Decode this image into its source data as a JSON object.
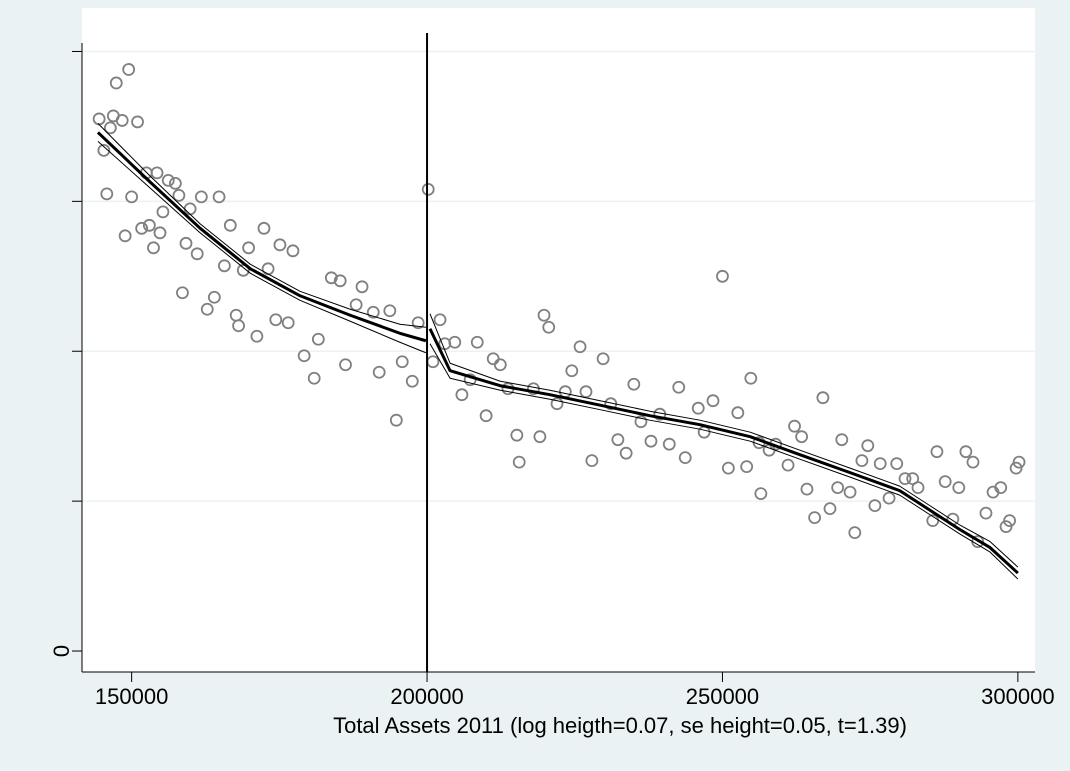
{
  "chart_data": {
    "type": "scatter",
    "x_label": "Total Assets 2011 (log heigth=0.07, se height=0.05, t=1.39)",
    "xlim": [
      141600,
      302900
    ],
    "xticks": [
      150000,
      200000,
      250000,
      300000
    ],
    "ylim": [
      -0.14,
      4.29
    ],
    "yticks": [
      0
    ],
    "yticks_unlabeled": [
      1,
      2,
      3,
      4
    ],
    "grid": true,
    "cutoff": 200000,
    "series": [
      {
        "type": "scatter",
        "color": "#808080",
        "x": [
          144500,
          145300,
          145800,
          146400,
          146900,
          147400,
          148400,
          148900,
          149500,
          150000,
          151000,
          151700,
          152500,
          153000,
          153700,
          154300,
          154800,
          155300,
          156200,
          157400,
          158000,
          158600,
          159200,
          159900,
          161100,
          161800,
          162800,
          164000,
          164800,
          165700,
          166700,
          167700,
          168100,
          168900,
          169800,
          171200,
          172400,
          173100,
          174400,
          175100,
          176500,
          177300,
          179200,
          180900,
          181600,
          183800,
          185300,
          186200,
          188000,
          189000,
          190900,
          191900,
          193700,
          194800,
          195800,
          197500,
          198500,
          200200,
          201000,
          202200,
          203000,
          204700,
          205900,
          207300,
          208500,
          210000,
          211200,
          212400,
          213700,
          215200,
          215600,
          218000,
          219100,
          219800,
          220600,
          222000,
          223400,
          224500,
          225900,
          226900,
          227900,
          229800,
          231100,
          232300,
          233700,
          235000,
          236200,
          237900,
          239400,
          241000,
          242600,
          243700,
          245900,
          246900,
          248400,
          250000,
          251000,
          252600,
          254100,
          254800,
          256200,
          256500,
          257900,
          259000,
          261100,
          262200,
          263400,
          264300,
          265600,
          267000,
          268200,
          269500,
          270200,
          271600,
          272400,
          273600,
          274600,
          275800,
          276700,
          278200,
          279500,
          280900,
          282200,
          283100,
          285600,
          286300,
          287700,
          289000,
          290000,
          291200,
          292400,
          293200,
          294600,
          295800,
          297100,
          298000,
          298600,
          299700,
          300200
        ],
        "values": [
          3.55,
          3.34,
          3.05,
          3.49,
          3.57,
          3.79,
          3.54,
          2.77,
          3.88,
          3.03,
          3.53,
          2.82,
          3.19,
          2.84,
          2.69,
          3.19,
          2.79,
          2.93,
          3.14,
          3.12,
          3.04,
          2.39,
          2.72,
          2.95,
          2.65,
          3.03,
          2.28,
          2.36,
          3.03,
          2.57,
          2.84,
          2.24,
          2.17,
          2.54,
          2.69,
          2.1,
          2.82,
          2.55,
          2.21,
          2.71,
          2.19,
          2.67,
          1.97,
          1.82,
          2.08,
          2.49,
          2.47,
          1.91,
          2.31,
          2.43,
          2.26,
          1.86,
          2.27,
          1.54,
          1.93,
          1.8,
          2.19,
          3.08,
          1.93,
          2.21,
          2.05,
          2.06,
          1.71,
          1.81,
          2.06,
          1.57,
          1.95,
          1.91,
          1.75,
          1.44,
          1.26,
          1.75,
          1.43,
          2.24,
          2.16,
          1.65,
          1.73,
          1.87,
          2.03,
          1.73,
          1.27,
          1.95,
          1.65,
          1.41,
          1.32,
          1.78,
          1.53,
          1.4,
          1.58,
          1.38,
          1.76,
          1.29,
          1.62,
          1.46,
          1.67,
          2.5,
          1.22,
          1.59,
          1.23,
          1.82,
          1.39,
          1.05,
          1.34,
          1.38,
          1.24,
          1.5,
          1.43,
          1.08,
          0.89,
          1.69,
          0.95,
          1.09,
          1.41,
          1.06,
          0.79,
          1.27,
          1.37,
          0.97,
          1.25,
          1.02,
          1.25,
          1.15,
          1.15,
          1.09,
          0.87,
          1.33,
          1.13,
          0.88,
          1.09,
          1.33,
          1.26,
          0.73,
          0.92,
          1.06,
          1.09,
          0.83,
          0.87,
          1.22,
          1.26
        ]
      },
      {
        "type": "line",
        "color": "#000000",
        "width": 3,
        "x": [
          144300,
          153100,
          161600,
          170100,
          178500,
          187000,
          195400,
          199800
        ],
        "values": [
          3.46,
          3.13,
          2.82,
          2.55,
          2.37,
          2.24,
          2.12,
          2.07
        ]
      },
      {
        "type": "line",
        "color": "#000000",
        "width": 1,
        "x": [
          144300,
          153100,
          161600,
          170100,
          178500,
          187000,
          195400,
          199800
        ],
        "values": [
          3.52,
          3.17,
          2.85,
          2.58,
          2.4,
          2.28,
          2.18,
          2.16
        ]
      },
      {
        "type": "line",
        "color": "#000000",
        "width": 1,
        "x": [
          144300,
          153100,
          161600,
          170100,
          178500,
          187000,
          195400,
          199800
        ],
        "values": [
          3.4,
          3.09,
          2.79,
          2.52,
          2.34,
          2.2,
          2.06,
          1.99
        ]
      },
      {
        "type": "line",
        "color": "#000000",
        "width": 3,
        "x": [
          200500,
          203900,
          212400,
          220800,
          229300,
          237700,
          246200,
          254700,
          263100,
          271600,
          280000,
          285100,
          290200,
          295300,
          300000
        ],
        "values": [
          2.15,
          1.87,
          1.77,
          1.71,
          1.64,
          1.57,
          1.51,
          1.43,
          1.31,
          1.19,
          1.07,
          0.94,
          0.81,
          0.69,
          0.52
        ]
      },
      {
        "type": "line",
        "color": "#000000",
        "width": 1,
        "x": [
          200500,
          203900,
          212400,
          220800,
          229300,
          237700,
          246200,
          254700,
          263100,
          271600,
          280000,
          285100,
          290200,
          295300,
          300000
        ],
        "values": [
          2.25,
          1.92,
          1.8,
          1.74,
          1.67,
          1.6,
          1.54,
          1.46,
          1.34,
          1.22,
          1.1,
          0.97,
          0.84,
          0.73,
          0.56
        ]
      },
      {
        "type": "line",
        "color": "#000000",
        "width": 1,
        "x": [
          200500,
          203900,
          212400,
          220800,
          229300,
          237700,
          246200,
          254700,
          263100,
          271600,
          280000,
          285100,
          290200,
          295300,
          300000
        ],
        "values": [
          2.05,
          1.82,
          1.74,
          1.68,
          1.61,
          1.54,
          1.48,
          1.4,
          1.28,
          1.16,
          1.04,
          0.91,
          0.78,
          0.66,
          0.48
        ]
      }
    ]
  }
}
